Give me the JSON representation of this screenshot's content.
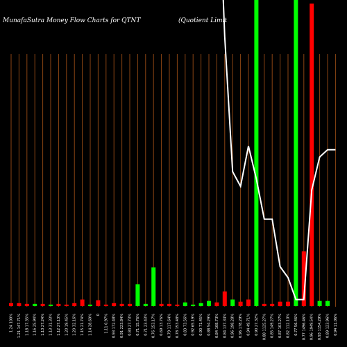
{
  "chart_data": {
    "type": "bar",
    "title": "MunafaSutra  Money Flow  Charts for QTNT",
    "subtitle": "(Quotient Limit",
    "colors": {
      "background": "#000000",
      "up": "#00ff00",
      "down": "#ff0000",
      "grid": "#8b4513",
      "line": "#ffffff"
    },
    "grid": true,
    "categories": [
      "1.24 100%",
      "1.21 147.71%",
      "1.18 17.35%",
      "1.16 25.94%",
      "1.13 27.24%",
      "1.13 31.33%",
      "1.12 27.13%",
      "1.20 19.45%",
      "1.20 32.16%",
      "1.15 21.74%",
      "1.14 28.60%",
      "0",
      "1.11 0.97%",
      "0.93 172.48%",
      "0.91 223.84%",
      "0.84 27.73%",
      "0.71 15.76%",
      "0.71 23.43%",
      "0.76 153.17%",
      "0.69 13.76%",
      "0.79 117.64%",
      "0.78 153.48%",
      "0.83 73.56%",
      "0.92 65.19%",
      "0.90 71.45%",
      "0.88 54.29%",
      "0.84 108.73%",
      "0.84 137.34%",
      "0.96 198.28%",
      "0.96 178.29%",
      "0.94 49.71%",
      "0.90 27.32%",
      "0.88 1125.27%",
      "0.85 149.27%",
      "0.87 103.27%",
      "0.82 112.10%",
      "0.77 56.46%",
      "0.77 1496.46%",
      "0.96 1949.54%",
      "0.93 1154.29%",
      "0.89 123.96%",
      "0.94 11.06%"
    ],
    "values": [
      4,
      4,
      3,
      3,
      3,
      2,
      3,
      2,
      4,
      9,
      2,
      8,
      2,
      4,
      3,
      3,
      30,
      3,
      53,
      3,
      3,
      2,
      5,
      2,
      4,
      7,
      5,
      20,
      9,
      6,
      9,
      420,
      3,
      3,
      6,
      6,
      420,
      75,
      415,
      7,
      7,
      0
    ],
    "directions": [
      "down",
      "down",
      "down",
      "up",
      "down",
      "up",
      "down",
      "down",
      "down",
      "down",
      "up",
      "down",
      "down",
      "down",
      "down",
      "down",
      "up",
      "up",
      "up",
      "down",
      "down",
      "down",
      "up",
      "up",
      "up",
      "up",
      "down",
      "down",
      "up",
      "down",
      "down",
      "up",
      "down",
      "down",
      "down",
      "down",
      "up",
      "down",
      "red",
      "up",
      "up",
      "up"
    ],
    "ylim": [
      0,
      420
    ],
    "price_line": {
      "x_index_start": 26,
      "values": [
        1.8,
        1.25,
        0.88,
        0.84,
        0.95,
        0.86,
        0.75,
        0.75,
        0.62,
        0.59,
        0.53,
        0.53,
        0.83,
        0.92,
        0.94,
        0.94
      ],
      "ylim": [
        0.4,
        1.35
      ]
    }
  }
}
